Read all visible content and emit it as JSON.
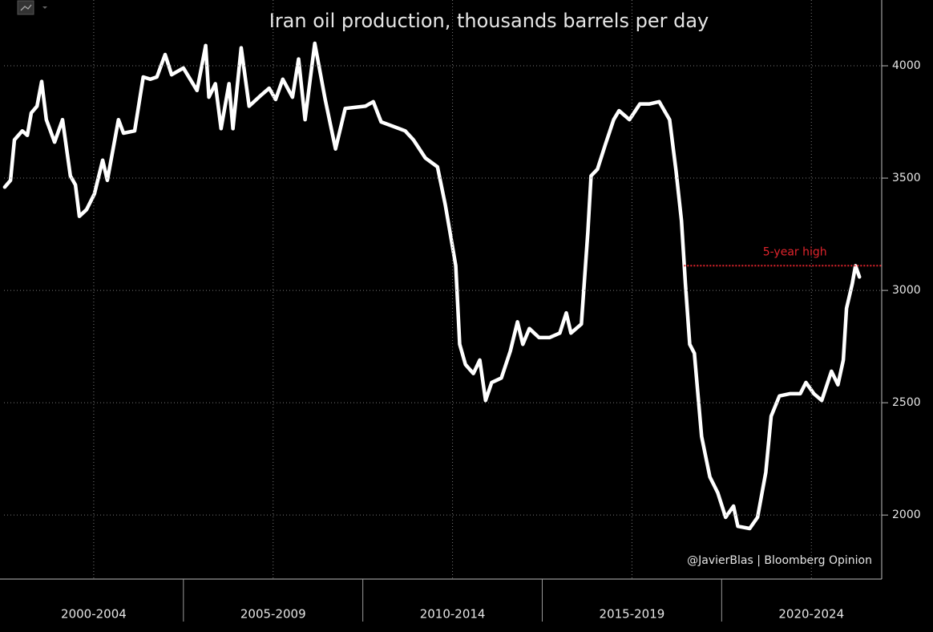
{
  "chart_data": {
    "type": "line",
    "title": "Iran oil production, thousands barrels per day",
    "credit": "@JavierBlas | Bloomberg Opinion",
    "color": "#ffffff",
    "x": [
      2000.02,
      2000.18,
      2000.29,
      2000.51,
      2000.65,
      2000.76,
      2000.92,
      2001.05,
      2001.18,
      2001.41,
      2001.63,
      2001.85,
      2001.99,
      2002.1,
      2002.3,
      2002.52,
      2002.75,
      2002.88,
      2003.19,
      2003.33,
      2003.64,
      2003.88,
      2004.08,
      2004.26,
      2004.49,
      2004.67,
      2005.0,
      2005.38,
      2005.62,
      2005.71,
      2005.89,
      2006.05,
      2006.27,
      2006.38,
      2006.61,
      2006.83,
      2007.17,
      2007.39,
      2007.57,
      2007.77,
      2008.04,
      2008.21,
      2008.39,
      2008.66,
      2008.95,
      2009.24,
      2009.51,
      2010.07,
      2010.29,
      2010.51,
      2010.85,
      2011.18,
      2011.41,
      2011.74,
      2012.08,
      2012.3,
      2012.59,
      2012.7,
      2012.86,
      2013.08,
      2013.26,
      2013.42,
      2013.59,
      2013.86,
      2014.11,
      2014.31,
      2014.46,
      2014.64,
      2014.91,
      2015.2,
      2015.49,
      2015.67,
      2015.8,
      2016.09,
      2016.27,
      2016.36,
      2016.54,
      2016.76,
      2016.99,
      2017.14,
      2017.43,
      2017.72,
      2017.99,
      2018.26,
      2018.55,
      2018.73,
      2018.88,
      2018.99,
      2019.11,
      2019.24,
      2019.44,
      2019.67,
      2019.89,
      2020.11,
      2020.33,
      2020.45,
      2020.78,
      2021.0,
      2021.23,
      2021.38,
      2021.61,
      2021.9,
      2022.19,
      2022.35,
      2022.57,
      2022.79,
      2023.06,
      2023.24,
      2023.39,
      2023.48,
      2023.64,
      2023.73,
      2023.84
    ],
    "values": [
      3460,
      3490,
      3670,
      3710,
      3690,
      3790,
      3820,
      3930,
      3760,
      3660,
      3760,
      3510,
      3470,
      3330,
      3360,
      3430,
      3580,
      3490,
      3760,
      3700,
      3710,
      3950,
      3940,
      3950,
      4050,
      3960,
      3990,
      3890,
      4090,
      3860,
      3920,
      3720,
      3920,
      3720,
      4080,
      3820,
      3870,
      3900,
      3850,
      3940,
      3860,
      4030,
      3760,
      4100,
      3850,
      3630,
      3810,
      3820,
      3840,
      3750,
      3730,
      3710,
      3670,
      3590,
      3550,
      3380,
      3110,
      2760,
      2670,
      2630,
      2690,
      2510,
      2590,
      2610,
      2730,
      2860,
      2760,
      2830,
      2790,
      2790,
      2810,
      2900,
      2810,
      2850,
      3260,
      3510,
      3540,
      3650,
      3760,
      3800,
      3760,
      3830,
      3830,
      3840,
      3760,
      3530,
      3310,
      3030,
      2760,
      2720,
      2350,
      2170,
      2100,
      1990,
      2040,
      1950,
      1940,
      1990,
      2190,
      2440,
      2530,
      2540,
      2540,
      2590,
      2540,
      2510,
      2640,
      2580,
      2690,
      2920,
      3030,
      3110,
      3060
    ],
    "xlim": [
      2000,
      2024.46
    ],
    "xticks": [
      {
        "value": 2002.5,
        "label": "2000-2004"
      },
      {
        "value": 2007.5,
        "label": "2005-2009"
      },
      {
        "value": 2012.5,
        "label": "2010-2014"
      },
      {
        "value": 2017.5,
        "label": "2015-2019"
      },
      {
        "value": 2022.5,
        "label": "2020-2024"
      }
    ],
    "ylim": [
      1715,
      4275
    ],
    "yticks": [
      2000,
      2500,
      3000,
      3500,
      4000
    ],
    "grid": true,
    "reference_line": {
      "value": 3110,
      "x_start": 2018.95,
      "label": "5-year high",
      "color": "#e0242c"
    }
  }
}
